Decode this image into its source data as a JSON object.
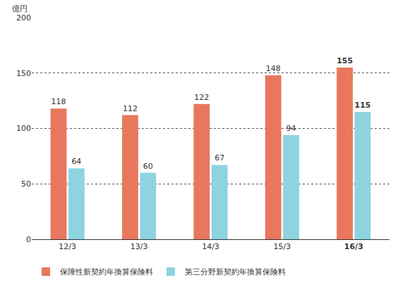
{
  "chart_data": {
    "type": "bar",
    "ylabel": "億円",
    "categories": [
      "12/3",
      "13/3",
      "14/3",
      "15/3",
      "16/3"
    ],
    "series": [
      {
        "name": "保障性新契約年換算保険料",
        "color": "#e8775d",
        "values": [
          118,
          112,
          122,
          148,
          155
        ]
      },
      {
        "name": "第三分野新契約年換算保険料",
        "color": "#8dd4e0",
        "values": [
          64,
          60,
          67,
          94,
          115
        ]
      }
    ],
    "ylim": [
      0,
      200
    ],
    "yticks": [
      0,
      50,
      100,
      150,
      200
    ],
    "grid": true,
    "data_labels": true,
    "legend": "bottom-left"
  }
}
